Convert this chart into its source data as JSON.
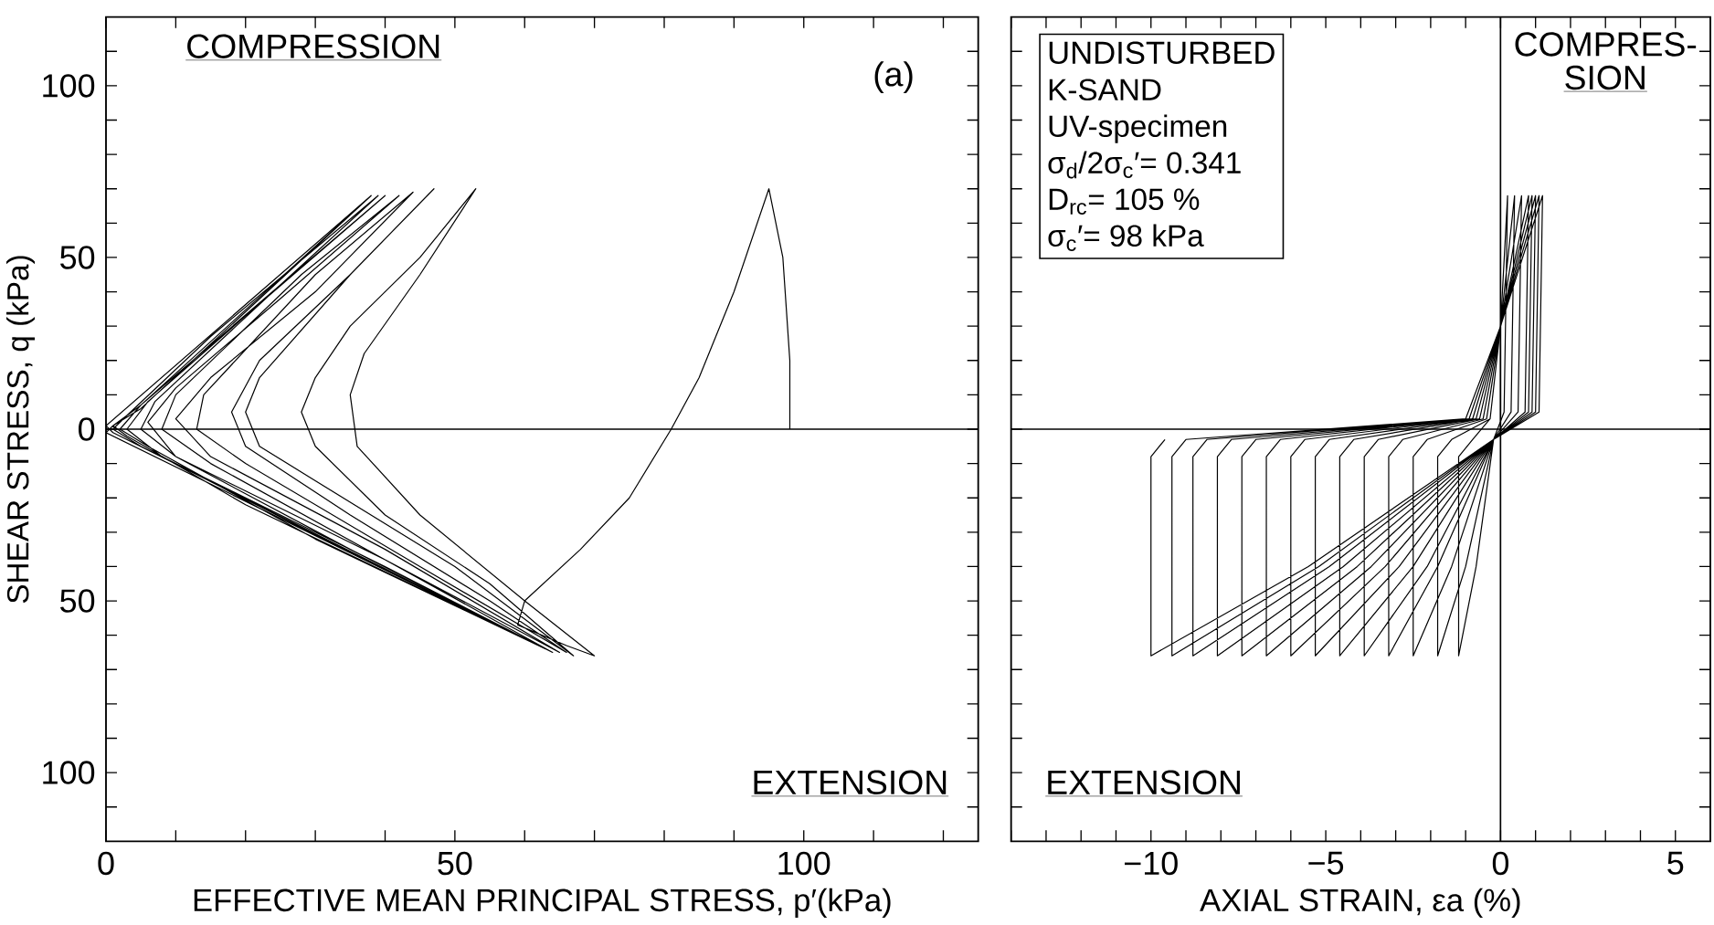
{
  "chart_data": [
    {
      "type": "line",
      "xlabel": "EFFECTIVE MEAN PRINCIPAL STRESS, p′(kPa)",
      "ylabel": "SHEAR STRESS,  q (kPa)",
      "annotations": [
        "COMPRESSION",
        "(a)",
        "EXTENSION"
      ],
      "xlim": [
        0,
        125
      ],
      "ylim": [
        -120,
        120
      ],
      "xticks": [
        0,
        {
          "value": 10,
          "label": null
        },
        {
          "value": 20,
          "label": null
        },
        {
          "value": 30,
          "label": null
        },
        {
          "value": 40,
          "label": null
        },
        50,
        {
          "value": 60,
          "label": null
        },
        {
          "value": 70,
          "label": null
        },
        {
          "value": 80,
          "label": null
        },
        {
          "value": 90,
          "label": null
        },
        100,
        {
          "value": 110,
          "label": null
        },
        {
          "value": 120,
          "label": null
        }
      ],
      "yticks": [
        {
          "value": -110,
          "label": null
        },
        {
          "value": -100,
          "label": "100"
        },
        {
          "value": -90,
          "label": null
        },
        {
          "value": -80,
          "label": null
        },
        {
          "value": -70,
          "label": null
        },
        {
          "value": -60,
          "label": null
        },
        {
          "value": -50,
          "label": "50"
        },
        {
          "value": -40,
          "label": null
        },
        {
          "value": -30,
          "label": null
        },
        {
          "value": -20,
          "label": null
        },
        {
          "value": -10,
          "label": null
        },
        0,
        {
          "value": 10,
          "label": null
        },
        {
          "value": 20,
          "label": null
        },
        {
          "value": 30,
          "label": null
        },
        {
          "value": 40,
          "label": null
        },
        50,
        {
          "value": 60,
          "label": null
        },
        {
          "value": 70,
          "label": null
        },
        {
          "value": 80,
          "label": null
        },
        {
          "value": 90,
          "label": null
        },
        100,
        {
          "value": 110,
          "label": null
        }
      ],
      "ref_lines": [
        {
          "axis": "y",
          "value": 0
        }
      ],
      "series": [
        {
          "color": "#000000",
          "x": [
            98,
            98,
            97,
            95,
            90,
            85,
            81,
            75,
            68,
            60,
            59,
            66,
            70,
            60,
            45,
            36,
            35,
            37,
            45,
            53,
            45,
            35,
            30,
            28,
            30,
            40,
            55,
            67,
            50,
            30,
            22,
            20,
            22,
            35,
            47,
            35,
            22,
            18,
            20,
            35,
            55,
            66,
            45,
            20,
            13,
            14,
            30,
            44,
            30,
            15,
            10,
            15,
            40,
            65,
            40,
            15,
            8,
            10,
            28,
            42,
            25,
            10,
            6,
            10,
            40,
            64,
            35,
            10,
            5,
            7,
            25,
            40,
            20,
            6,
            3,
            8,
            40,
            63,
            30,
            6,
            2,
            5,
            25,
            39,
            15,
            3,
            1,
            5,
            40,
            63,
            20,
            3,
            1,
            5,
            38,
            5,
            1,
            0,
            63,
            1,
            0,
            38
          ],
          "values": [
            0,
            20,
            50,
            70,
            40,
            15,
            0,
            -20,
            -35,
            -50,
            -57,
            -63,
            -66,
            -50,
            -25,
            -5,
            10,
            22,
            45,
            70,
            50,
            30,
            15,
            5,
            -5,
            -25,
            -45,
            -66,
            -40,
            -15,
            -5,
            5,
            15,
            45,
            70,
            45,
            20,
            5,
            -5,
            -25,
            -50,
            -65,
            -40,
            -10,
            0,
            10,
            45,
            69,
            40,
            15,
            3,
            -8,
            -35,
            -65,
            -38,
            -10,
            0,
            10,
            45,
            68,
            38,
            12,
            2,
            -8,
            -38,
            -65,
            -35,
            -8,
            0,
            8,
            42,
            68,
            33,
            8,
            0,
            -8,
            -40,
            -64,
            -32,
            -5,
            0,
            7,
            42,
            68,
            27,
            4,
            0,
            -5,
            -41,
            -64,
            -22,
            -2,
            1,
            6,
            68,
            7,
            1,
            -1,
            -64,
            -1,
            1,
            68
          ]
        }
      ]
    },
    {
      "type": "line",
      "xlabel": "AXIAL STRAIN, εa (%)",
      "annotations": [
        "UNDISTURBED",
        "K-SAND",
        "UV-specimen",
        "σ$_{d}$/2σ$_{c}$′= 0.341",
        "D$_{rc}$= 105 %",
        "σ$_{c}$′= 98 kPa",
        "COMPRES-",
        "SION",
        "EXTENSION"
      ],
      "xlim": [
        -14,
        6
      ],
      "ylim": [
        -120,
        120
      ],
      "tick_labels": "x",
      "xticks": [
        {
          "value": -14,
          "label": null
        },
        {
          "value": -13,
          "label": null
        },
        {
          "value": -12,
          "label": null
        },
        {
          "value": -11,
          "label": null
        },
        {
          "value": -10,
          "label": "−10"
        },
        {
          "value": -9,
          "label": null
        },
        {
          "value": -8,
          "label": null
        },
        {
          "value": -7,
          "label": null
        },
        {
          "value": -6,
          "label": null
        },
        {
          "value": -5,
          "label": "−5"
        },
        {
          "value": -4,
          "label": null
        },
        {
          "value": -3,
          "label": null
        },
        {
          "value": -2,
          "label": null
        },
        {
          "value": -1,
          "label": null
        },
        0,
        {
          "value": 1,
          "label": null
        },
        {
          "value": 2,
          "label": null
        },
        {
          "value": 3,
          "label": null
        },
        {
          "value": 4,
          "label": null
        },
        5
      ],
      "yticks": [
        {
          "value": -110,
          "label": null
        },
        {
          "value": -100,
          "label": null
        },
        {
          "value": -90,
          "label": null
        },
        {
          "value": -80,
          "label": null
        },
        {
          "value": -70,
          "label": null
        },
        {
          "value": -60,
          "label": null
        },
        {
          "value": -50,
          "label": null
        },
        {
          "value": -40,
          "label": null
        },
        {
          "value": -30,
          "label": null
        },
        {
          "value": -20,
          "label": null
        },
        {
          "value": -10,
          "label": null
        },
        {
          "value": 0,
          "label": null
        },
        {
          "value": 10,
          "label": null
        },
        {
          "value": 20,
          "label": null
        },
        {
          "value": 30,
          "label": null
        },
        {
          "value": 40,
          "label": null
        },
        {
          "value": 50,
          "label": null
        },
        {
          "value": 60,
          "label": null
        },
        {
          "value": 70,
          "label": null
        },
        {
          "value": 80,
          "label": null
        },
        {
          "value": 90,
          "label": null
        },
        {
          "value": 100,
          "label": null
        },
        {
          "value": 110,
          "label": null
        }
      ],
      "ref_lines": [
        {
          "axis": "y",
          "value": 0
        },
        {
          "axis": "x",
          "value": 0
        }
      ],
      "series": [
        {
          "color": "#000000",
          "x": [
            0,
            0,
            0.2,
            0.1,
            -0.2,
            -0.7,
            -1.2,
            -1.2,
            -0.8,
            -0.3,
            0,
            0.4,
            0.3,
            -0.2,
            -1.0,
            -1.8,
            -1.8,
            -1.4,
            -0.3,
            0,
            0.6,
            0.5,
            -0.2,
            -1.4,
            -2.5,
            -2.5,
            -2.1,
            -0.4,
            0,
            0.8,
            0.7,
            -0.2,
            -1.8,
            -3.2,
            -3.2,
            -2.8,
            -0.5,
            0,
            0.9,
            0.8,
            -0.2,
            -2.1,
            -3.9,
            -3.9,
            -3.5,
            -0.6,
            0,
            1.0,
            0.9,
            -0.2,
            -2.5,
            -4.6,
            -4.6,
            -4.2,
            -0.7,
            0,
            1.1,
            1.0,
            -0.2,
            -2.9,
            -5.3,
            -5.3,
            -4.9,
            -0.8,
            0,
            1.1,
            1.0,
            -0.2,
            -3.3,
            -6,
            -6,
            -5.6,
            -0.9,
            0,
            1.2,
            1.1,
            -0.2,
            -3.7,
            -6.7,
            -6.7,
            -6.3,
            -1,
            0,
            1.2,
            1.1,
            -0.2,
            -4.1,
            -7.4,
            -7.4,
            -7,
            -1,
            0,
            1.2,
            1.1,
            -0.2,
            -4.5,
            -8.1,
            -8.1,
            -7.7,
            -1,
            0,
            1.2,
            1.1,
            -0.2,
            -4.9,
            -8.8,
            -8.8,
            -8.4,
            -1,
            0,
            1.2,
            1.1,
            -0.2,
            -5.2,
            -9.4,
            -9.4,
            -9,
            -1,
            0,
            1.2,
            1.1,
            -0.2,
            -5.5,
            -10,
            -10,
            -9.6
          ],
          "values": [
            0,
            30,
            68,
            5,
            -3,
            -40,
            -66,
            -8,
            -3,
            3,
            30,
            68,
            5,
            -3,
            -40,
            -66,
            -8,
            -3,
            3,
            30,
            68,
            5,
            -3,
            -40,
            -66,
            -8,
            -3,
            3,
            30,
            68,
            5,
            -3,
            -40,
            -66,
            -8,
            -3,
            3,
            30,
            68,
            5,
            -3,
            -40,
            -66,
            -8,
            -3,
            3,
            30,
            68,
            5,
            -3,
            -40,
            -66,
            -8,
            -3,
            3,
            30,
            68,
            5,
            -3,
            -40,
            -66,
            -8,
            -3,
            3,
            30,
            68,
            5,
            -3,
            -40,
            -66,
            -8,
            -3,
            3,
            30,
            68,
            5,
            -3,
            -40,
            -66,
            -8,
            -3,
            3,
            30,
            68,
            5,
            -3,
            -40,
            -66,
            -8,
            -3,
            3,
            30,
            68,
            5,
            -3,
            -40,
            -66,
            -8,
            -3,
            3,
            30,
            68,
            5,
            -3,
            -40,
            -66,
            -8,
            -3,
            3,
            30,
            68,
            5,
            -3,
            -40,
            -66,
            -8,
            -3,
            3,
            30,
            68,
            5,
            -3,
            -40,
            -66,
            -8,
            -3
          ]
        }
      ]
    }
  ]
}
